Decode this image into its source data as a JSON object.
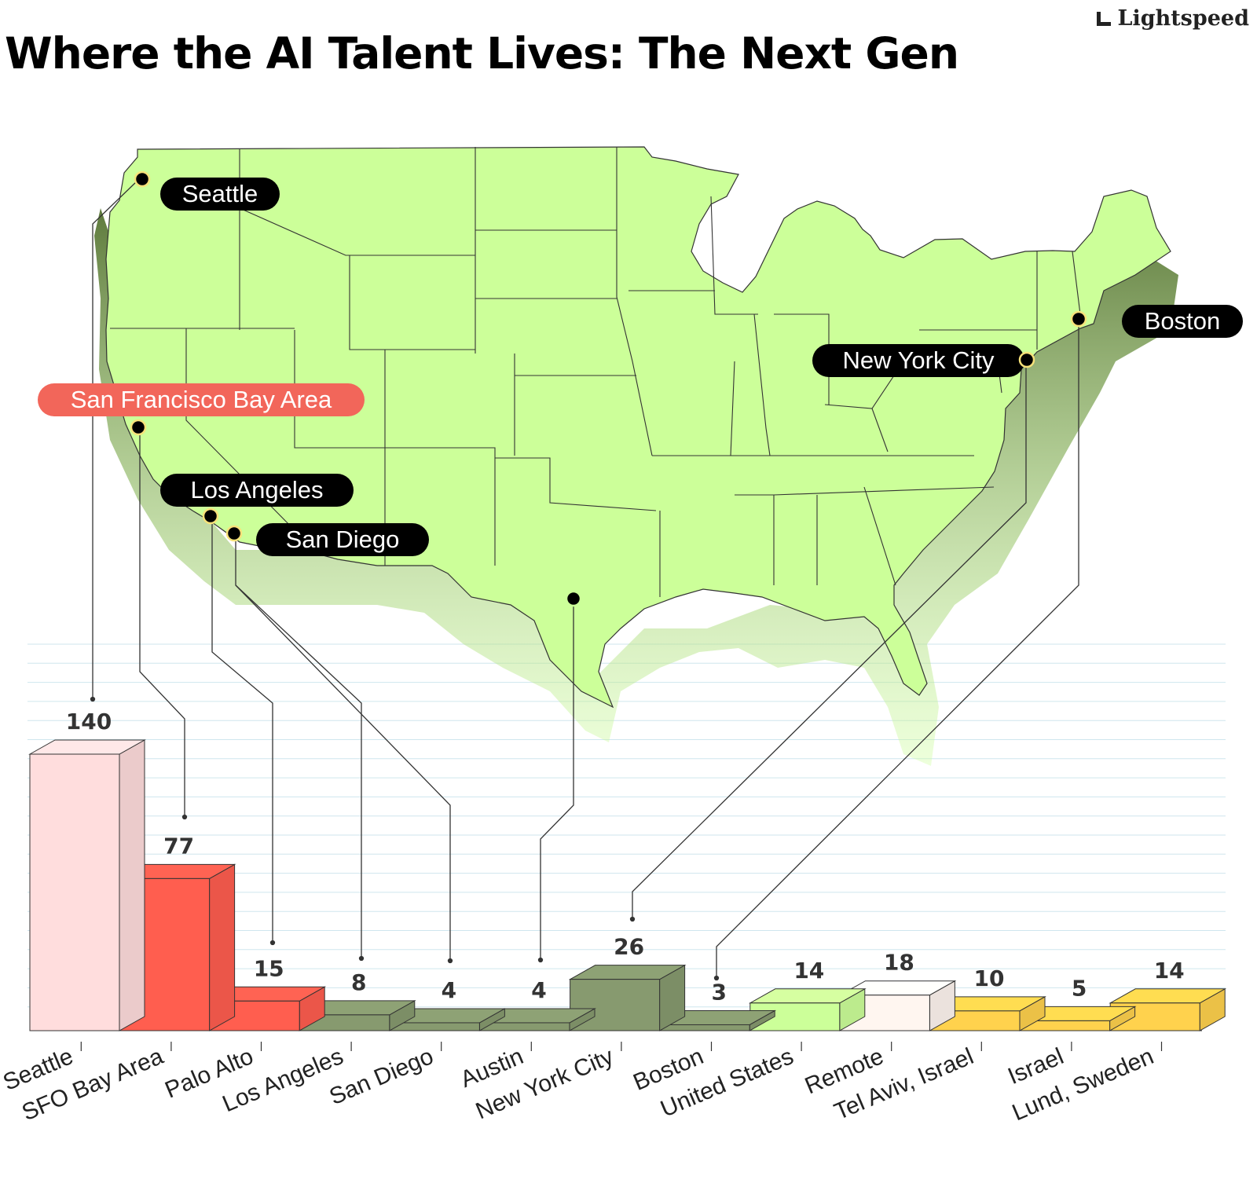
{
  "title": "Where the AI Talent Lives: The Next Gen",
  "brand": "Lightspeed",
  "colors": {
    "map_fill": "#ccff99",
    "map_shadow": "#6f8f4a",
    "pill_dark": "#000000",
    "pill_highlight": "#f2665a",
    "grid": "#cfe6ee"
  },
  "map_labels": [
    {
      "id": "seattle",
      "label": "Seattle",
      "style": "dark"
    },
    {
      "id": "sfba",
      "label": "San Francisco Bay Area",
      "style": "highlight"
    },
    {
      "id": "la",
      "label": "Los Angeles",
      "style": "dark"
    },
    {
      "id": "sd",
      "label": "San Diego",
      "style": "dark"
    },
    {
      "id": "nyc",
      "label": "New York City",
      "style": "dark"
    },
    {
      "id": "boston",
      "label": "Boston",
      "style": "dark"
    }
  ],
  "chart_data": {
    "type": "bar",
    "title": "Where the AI Talent Lives: The Next Gen",
    "xlabel": "",
    "ylabel": "",
    "ylim": [
      0,
      155
    ],
    "grid": true,
    "categories": [
      "Seattle",
      "SFO Bay Area",
      "Palo Alto",
      "Los Angeles",
      "San Diego",
      "Austin",
      "New York City",
      "Boston",
      "United States",
      "Remote",
      "Tel Aviv, Israel",
      "Israel",
      "Lund, Sweden"
    ],
    "values": [
      140,
      77,
      15,
      8,
      4,
      4,
      26,
      3,
      14,
      18,
      10,
      5,
      14
    ],
    "bar_colors": [
      "#ffdddd",
      "#ff5e4f",
      "#ff5e4f",
      "#879a6f",
      "#879a6f",
      "#879a6f",
      "#879a6f",
      "#879a6f",
      "#ccff99",
      "#fff6f0",
      "#ffd24d",
      "#ffd24d",
      "#ffd24d"
    ]
  }
}
